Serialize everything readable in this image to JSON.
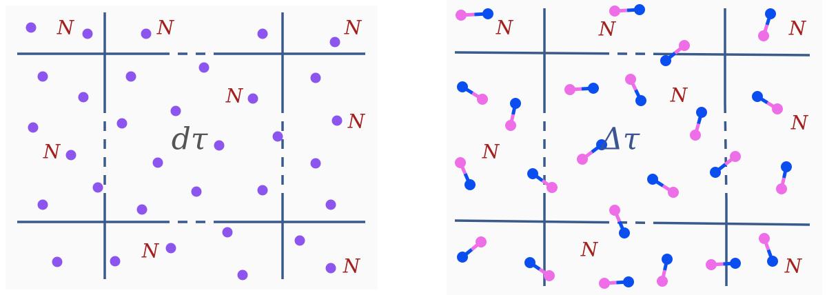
{
  "left_panel": {
    "cell_label": "N",
    "center_label": "dτ",
    "particle": "single-atom"
  },
  "right_panel": {
    "cell_label": "N",
    "center_label": "Δτ",
    "particle": "diatomic-molecule"
  },
  "colors": {
    "background": "#fafafa",
    "grid_line": "#3b5a8c",
    "atom": "#8b55ee",
    "molecule_blue": "#0b4ef0",
    "molecule_pink": "#ee6ee8",
    "n_label": "#a3201e",
    "left_center_label": "#555555",
    "right_center_label": "#3a5590"
  }
}
